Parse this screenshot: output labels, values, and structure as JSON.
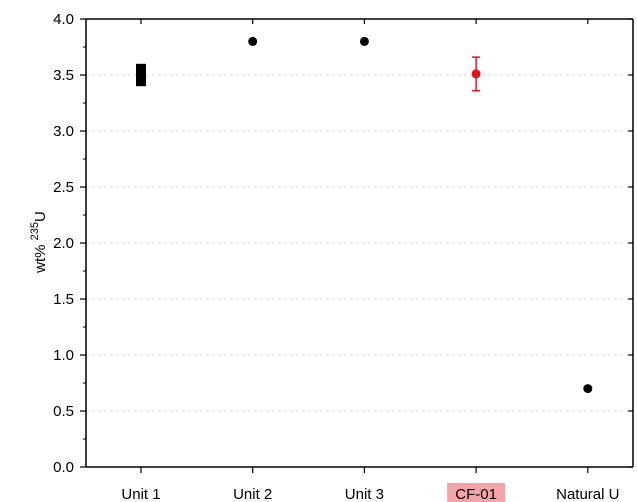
{
  "chart_data": {
    "type": "scatter",
    "categories": [
      "Unit 1",
      "Unit 2",
      "Unit 3",
      "CF-01",
      "Natural U"
    ],
    "highlight_category": "CF-01",
    "highlight_color": "#f4a3a8",
    "ylabel": "wt% ",
    "ylabel_sup": "235",
    "ylabel_suffix": "U",
    "ylim": [
      0.0,
      4.0
    ],
    "yticks": [
      0.0,
      0.5,
      1.0,
      1.5,
      2.0,
      2.5,
      3.0,
      3.5,
      4.0
    ],
    "ytick_labels": [
      "0.0",
      "0.5",
      "1.0",
      "1.5",
      "2.0",
      "2.5",
      "3.0",
      "3.5",
      "4.0"
    ],
    "grid": true,
    "points": [
      {
        "category": "Unit 1",
        "y": 3.5,
        "range": [
          3.4,
          3.6
        ],
        "marker": "bar",
        "color": "#000000"
      },
      {
        "category": "Unit 2",
        "y": 3.8,
        "marker": "circle",
        "color": "#000000"
      },
      {
        "category": "Unit 3",
        "y": 3.8,
        "marker": "circle",
        "color": "#000000"
      },
      {
        "category": "CF-01",
        "y": 3.51,
        "error": [
          3.36,
          3.66
        ],
        "marker": "circle",
        "color": "#e8101a"
      },
      {
        "category": "Natural U",
        "y": 0.7,
        "marker": "circle",
        "color": "#000000"
      }
    ]
  }
}
